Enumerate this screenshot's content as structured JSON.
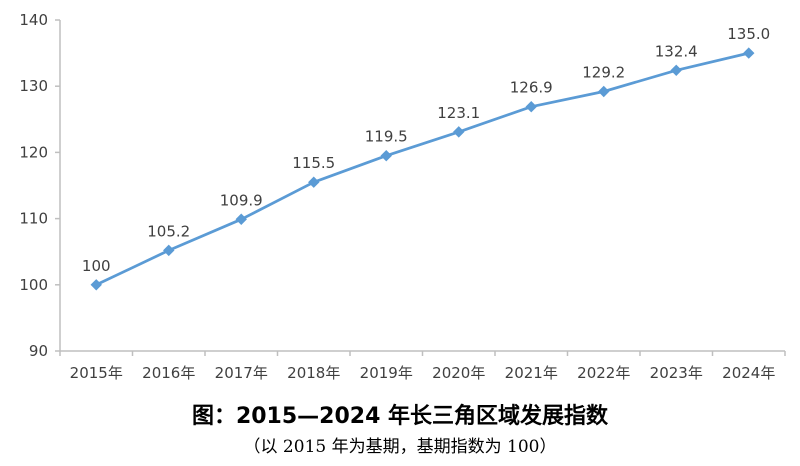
{
  "chart_data": {
    "type": "line",
    "categories": [
      "2015年",
      "2016年",
      "2017年",
      "2018年",
      "2019年",
      "2020年",
      "2021年",
      "2022年",
      "2023年",
      "2024年"
    ],
    "data_labels": [
      "100",
      "105.2",
      "109.9",
      "115.5",
      "119.5",
      "123.1",
      "126.9",
      "129.2",
      "132.4",
      "135.0"
    ],
    "series": [
      {
        "values": [
          100,
          105.2,
          109.9,
          115.5,
          119.5,
          123.1,
          126.9,
          129.2,
          132.4,
          135.0
        ]
      }
    ],
    "ylim": [
      90,
      140
    ],
    "yticks": [
      "90",
      "100",
      "110",
      "120",
      "130",
      "140"
    ],
    "grid": false,
    "line_color": "#5b9bd5",
    "marker": "diamond",
    "title": "图：2015—2024 年长三角区域发展指数",
    "subtitle": "（以 2015 年为基期，基期指数为 100）"
  }
}
